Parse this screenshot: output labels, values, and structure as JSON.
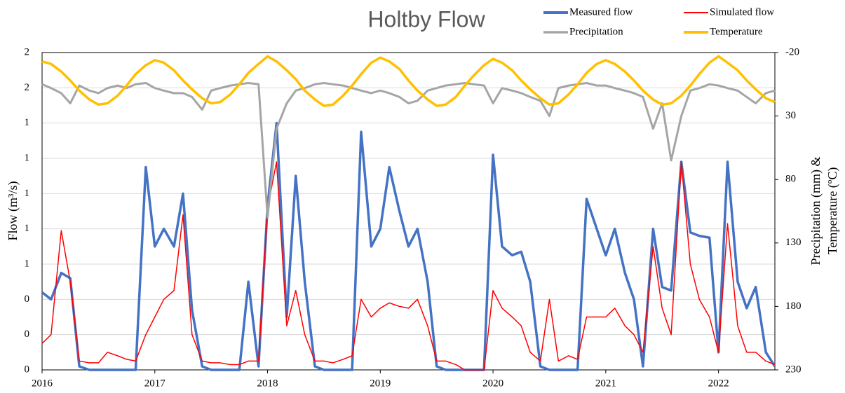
{
  "chart_data": {
    "type": "line",
    "title": "Holtby Flow",
    "ylabel": "Flow (m³/s)",
    "y2label": [
      "Precipitation (mm) &",
      "Temperature (ºC)"
    ],
    "legend": "top",
    "grid": true,
    "xlim": [
      2016,
      2022.5
    ],
    "xticks": [
      2016,
      2017,
      2018,
      2019,
      2020,
      2021,
      2022
    ],
    "ylim": [
      0,
      1.8
    ],
    "yticks": [
      {
        "value": 0,
        "label": "0"
      },
      {
        "value": 0.2,
        "label": "0"
      },
      {
        "value": 0.4,
        "label": "0"
      },
      {
        "value": 0.6,
        "label": "1"
      },
      {
        "value": 0.8,
        "label": "1"
      },
      {
        "value": 1.0,
        "label": "1"
      },
      {
        "value": 1.2,
        "label": "1"
      },
      {
        "value": 1.4,
        "label": "1"
      },
      {
        "value": 1.6,
        "label": "2"
      },
      {
        "value": 1.8,
        "label": "2"
      }
    ],
    "y2lim": [
      230,
      -20
    ],
    "y2ticks": [
      -20,
      30,
      80,
      130,
      180,
      230
    ],
    "x": [
      2016.0,
      2016.08,
      2016.17,
      2016.25,
      2016.33,
      2016.42,
      2016.5,
      2016.58,
      2016.67,
      2016.75,
      2016.83,
      2016.92,
      2017.0,
      2017.08,
      2017.17,
      2017.25,
      2017.33,
      2017.42,
      2017.5,
      2017.58,
      2017.67,
      2017.75,
      2017.83,
      2017.92,
      2018.0,
      2018.08,
      2018.17,
      2018.25,
      2018.33,
      2018.42,
      2018.5,
      2018.58,
      2018.67,
      2018.75,
      2018.83,
      2018.92,
      2019.0,
      2019.08,
      2019.17,
      2019.25,
      2019.33,
      2019.42,
      2019.5,
      2019.58,
      2019.67,
      2019.75,
      2019.83,
      2019.92,
      2020.0,
      2020.08,
      2020.17,
      2020.25,
      2020.33,
      2020.42,
      2020.5,
      2020.58,
      2020.67,
      2020.75,
      2020.83,
      2020.92,
      2021.0,
      2021.08,
      2021.17,
      2021.25,
      2021.33,
      2021.42,
      2021.5,
      2021.58,
      2021.67,
      2021.75,
      2021.83,
      2021.92,
      2022.0,
      2022.08,
      2022.17,
      2022.25,
      2022.33,
      2022.42,
      2022.5
    ],
    "series": [
      {
        "name": "Measured flow",
        "color": "#4472c4",
        "width": 3.5,
        "values": [
          0.44,
          0.4,
          0.55,
          0.52,
          0.02,
          0,
          0,
          0,
          0,
          0,
          0,
          1.15,
          0.7,
          0.8,
          0.7,
          1.0,
          0.34,
          0.02,
          0,
          0,
          0,
          0,
          0.5,
          0.02,
          0.93,
          1.4,
          0.3,
          1.1,
          0.5,
          0.02,
          0,
          0,
          0,
          0,
          1.35,
          0.7,
          0.8,
          1.15,
          0.9,
          0.7,
          0.8,
          0.5,
          0.02,
          0,
          0,
          0,
          0,
          0,
          1.22,
          0.7,
          0.65,
          0.67,
          0.5,
          0.02,
          0,
          0,
          0,
          0,
          0.97,
          0.8,
          0.65,
          0.8,
          0.55,
          0.4,
          0.02,
          0.8,
          0.47,
          0.45,
          1.18,
          0.78,
          0.76,
          0.75,
          0.1,
          1.18,
          0.5,
          0.35,
          0.47,
          0.1,
          0.02
        ]
      },
      {
        "name": "Simulated flow",
        "color": "#ff0000",
        "width": 1.5,
        "values": [
          0.15,
          0.2,
          0.79,
          0.5,
          0.05,
          0.04,
          0.04,
          0.1,
          0.08,
          0.06,
          0.05,
          0.2,
          0.3,
          0.4,
          0.45,
          0.88,
          0.2,
          0.05,
          0.04,
          0.04,
          0.03,
          0.03,
          0.05,
          0.05,
          0.92,
          1.18,
          0.25,
          0.45,
          0.2,
          0.05,
          0.05,
          0.04,
          0.06,
          0.08,
          0.4,
          0.3,
          0.35,
          0.38,
          0.36,
          0.35,
          0.4,
          0.25,
          0.05,
          0.05,
          0.03,
          0,
          0,
          0,
          0.45,
          0.35,
          0.3,
          0.25,
          0.1,
          0.05,
          0.4,
          0.05,
          0.08,
          0.06,
          0.3,
          0.3,
          0.3,
          0.35,
          0.25,
          0.2,
          0.1,
          0.7,
          0.35,
          0.2,
          1.18,
          0.6,
          0.4,
          0.3,
          0.1,
          0.83,
          0.25,
          0.1,
          0.1,
          0.05,
          0.03
        ]
      },
      {
        "name": "Precipitation",
        "color": "#a5a5a5",
        "width": 3,
        "axis": "y2",
        "values": [
          5,
          8,
          12,
          20,
          6,
          10,
          12,
          8,
          6,
          8,
          5,
          4,
          8,
          10,
          12,
          12,
          15,
          25,
          10,
          8,
          6,
          5,
          4,
          5,
          110,
          40,
          20,
          10,
          8,
          5,
          4,
          5,
          6,
          8,
          10,
          12,
          10,
          12,
          15,
          20,
          18,
          10,
          8,
          6,
          5,
          4,
          5,
          6,
          20,
          8,
          10,
          12,
          15,
          18,
          30,
          8,
          6,
          5,
          4,
          6,
          6,
          8,
          10,
          12,
          15,
          40,
          20,
          65,
          30,
          10,
          8,
          5,
          6,
          8,
          10,
          15,
          20,
          12,
          10
        ]
      },
      {
        "name": "Temperature",
        "color": "#ffc000",
        "width": 3.5,
        "axis": "y2",
        "values": [
          -13,
          -11,
          -5,
          2,
          10,
          17,
          21,
          20,
          14,
          6,
          -3,
          -10,
          -14,
          -12,
          -6,
          2,
          9,
          16,
          20,
          19,
          13,
          5,
          -4,
          -11,
          -17,
          -13,
          -6,
          1,
          10,
          17,
          22,
          21,
          14,
          6,
          -3,
          -12,
          -16,
          -13,
          -7,
          2,
          10,
          17,
          22,
          21,
          15,
          6,
          -2,
          -10,
          -15,
          -12,
          -6,
          2,
          9,
          16,
          21,
          20,
          13,
          5,
          -4,
          -11,
          -14,
          -11,
          -5,
          2,
          10,
          17,
          21,
          20,
          14,
          6,
          -3,
          -12,
          -17,
          -12,
          -6,
          2,
          9,
          16,
          19
        ]
      }
    ]
  }
}
